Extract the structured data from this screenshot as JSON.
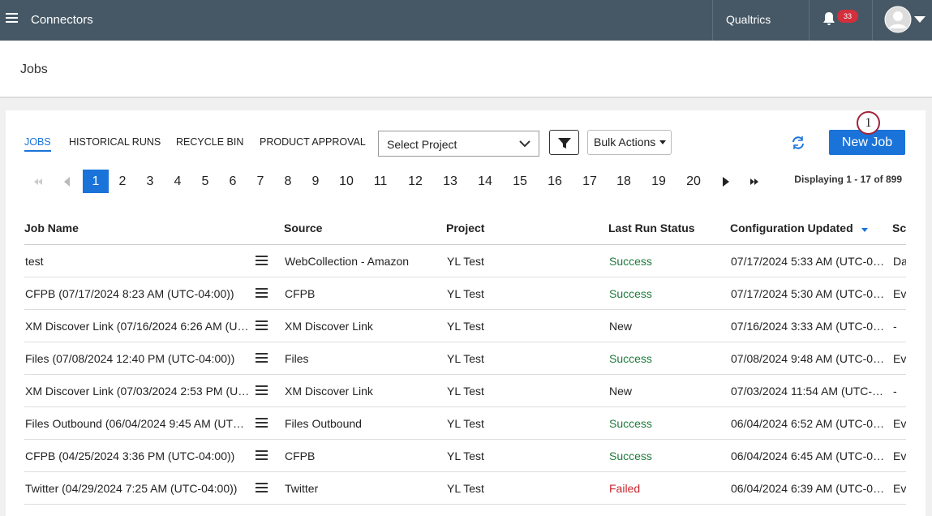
{
  "topbar": {
    "app": "Connectors",
    "brand": "Qualtrics",
    "notifications": 33
  },
  "page_title": "Jobs",
  "tabs": [
    "JOBS",
    "HISTORICAL RUNS",
    "RECYCLE BIN",
    "PRODUCT APPROVAL"
  ],
  "toolbar": {
    "project_select": "Select Project",
    "bulk_actions": "Bulk Actions",
    "new_job": "New Job",
    "callout": 1
  },
  "pagination": {
    "pages": [
      1,
      2,
      3,
      4,
      5,
      6,
      7,
      8,
      9,
      10,
      11,
      12,
      13,
      14,
      15,
      16,
      17,
      18,
      19,
      20
    ],
    "current": 1,
    "summary": "Displaying 1 - 17 of 899"
  },
  "table": {
    "columns": [
      "Job Name",
      "Source",
      "Project",
      "Last Run Status",
      "Configuration Updated",
      "Sc"
    ],
    "rows": [
      [
        "test",
        "WebCollection - Amazon",
        "YL Test",
        "Success",
        "07/17/2024 5:33 AM (UTC-0…",
        "Da"
      ],
      [
        "CFPB (07/17/2024 8:23 AM (UTC-04:00))",
        "CFPB",
        "YL Test",
        "Success",
        "07/17/2024 5:30 AM (UTC-0…",
        "Ev"
      ],
      [
        "XM Discover Link (07/16/2024 6:26 AM (U…",
        "XM Discover Link",
        "YL Test",
        "New",
        "07/16/2024 3:33 AM (UTC-0…",
        "-"
      ],
      [
        "Files (07/08/2024 12:40 PM (UTC-04:00))",
        "Files",
        "YL Test",
        "Success",
        "07/08/2024 9:48 AM (UTC-0…",
        "Ev"
      ],
      [
        "XM Discover Link (07/03/2024 2:53 PM (U…",
        "XM Discover Link",
        "YL Test",
        "New",
        "07/03/2024 11:54 AM (UTC-…",
        "-"
      ],
      [
        "Files Outbound (06/04/2024 9:45 AM (UT…",
        "Files Outbound",
        "YL Test",
        "Success",
        "06/04/2024 6:52 AM (UTC-0…",
        "Ev"
      ],
      [
        "CFPB (04/25/2024 3:36 PM (UTC-04:00))",
        "CFPB",
        "YL Test",
        "Success",
        "06/04/2024 6:45 AM (UTC-0…",
        "Ev"
      ],
      [
        "Twitter (04/29/2024 7:25 AM (UTC-04:00))",
        "Twitter",
        "YL Test",
        "Failed",
        "06/04/2024 6:39 AM (UTC-0…",
        "Ev"
      ]
    ]
  }
}
